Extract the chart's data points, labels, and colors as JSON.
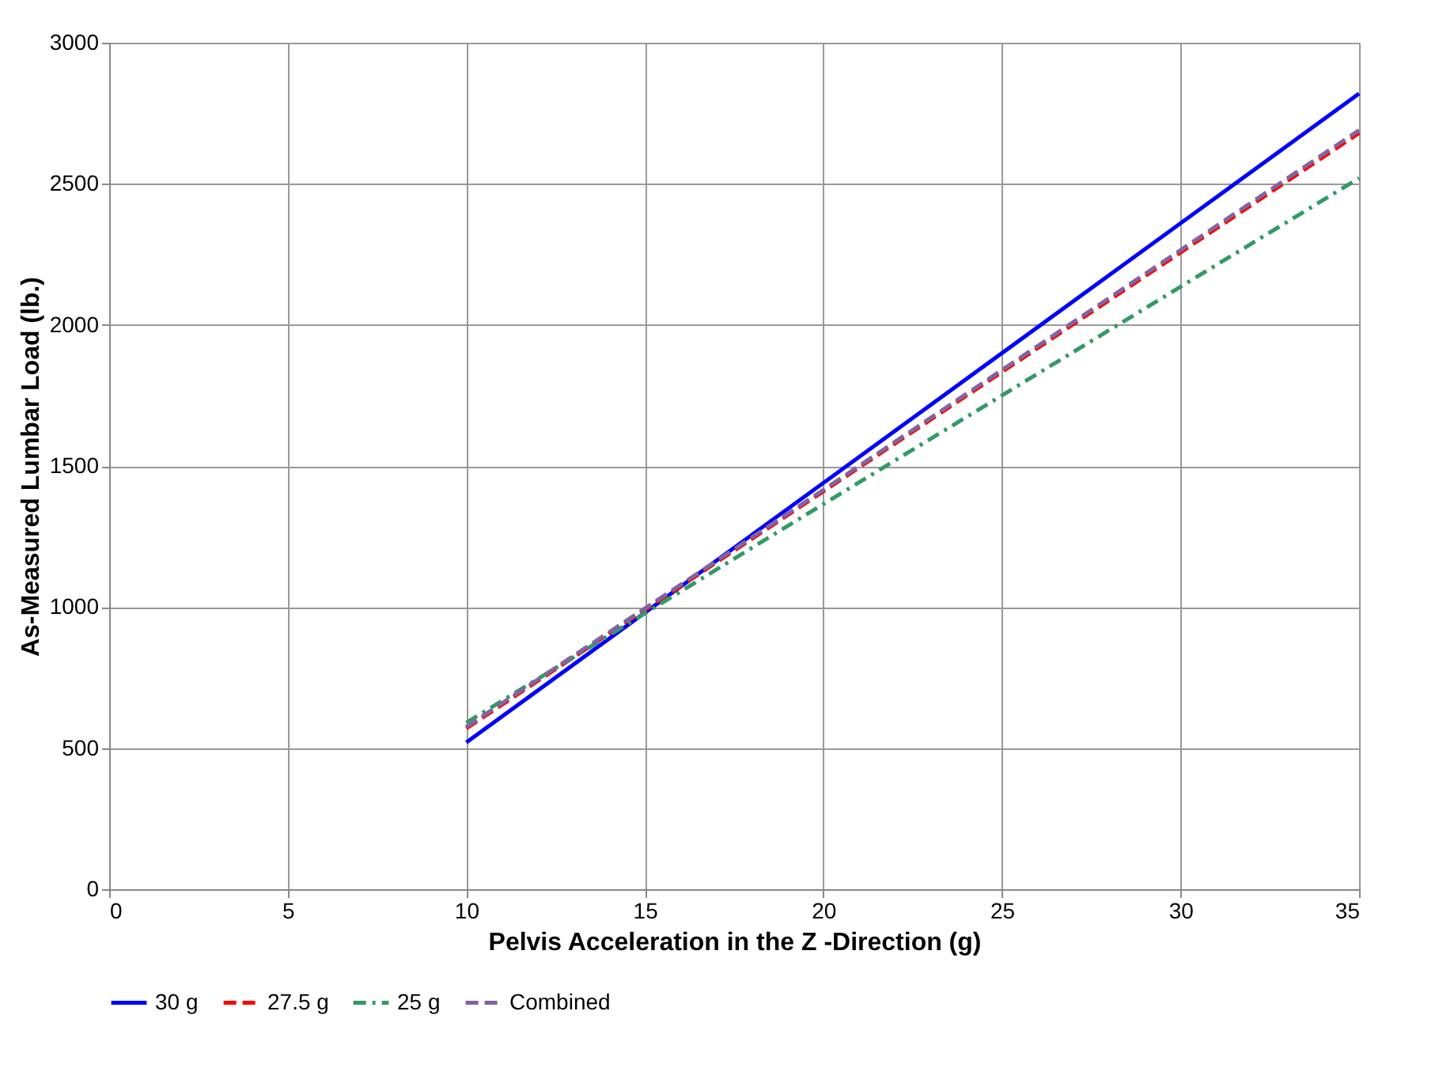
{
  "chart_data": {
    "type": "line",
    "xlabel": "Pelvis Acceleration in the Z -Direction (g)",
    "ylabel": "As-Measured Lumbar Load (lb.)",
    "xlim": [
      0,
      35
    ],
    "xticks": [
      0,
      5,
      10,
      15,
      20,
      25,
      30,
      35
    ],
    "ylim": [
      0,
      3000
    ],
    "yticks": [
      0,
      500,
      1000,
      1500,
      2000,
      2500,
      3000
    ],
    "grid": true,
    "legend": "bottom",
    "marker": "none",
    "series": [
      {
        "name": "30 g",
        "color": "#0000ff",
        "line_style": "solid",
        "x": [
          10,
          35
        ],
        "values": [
          520,
          2820
        ]
      },
      {
        "name": "27.5 g",
        "color": "#ff0000",
        "line_style": "dashed",
        "x": [
          10,
          20,
          35
        ],
        "values": [
          570,
          1410,
          2680
        ]
      },
      {
        "name": "25 g",
        "color": "#339966",
        "line_style": "dashdot",
        "x": [
          10,
          20,
          35
        ],
        "values": [
          590,
          1365,
          2520
        ]
      },
      {
        "name": "Combined",
        "color": "#8064a2",
        "line_style": "dashed",
        "x": [
          10,
          20,
          35
        ],
        "values": [
          575,
          1415,
          2690
        ]
      }
    ]
  }
}
